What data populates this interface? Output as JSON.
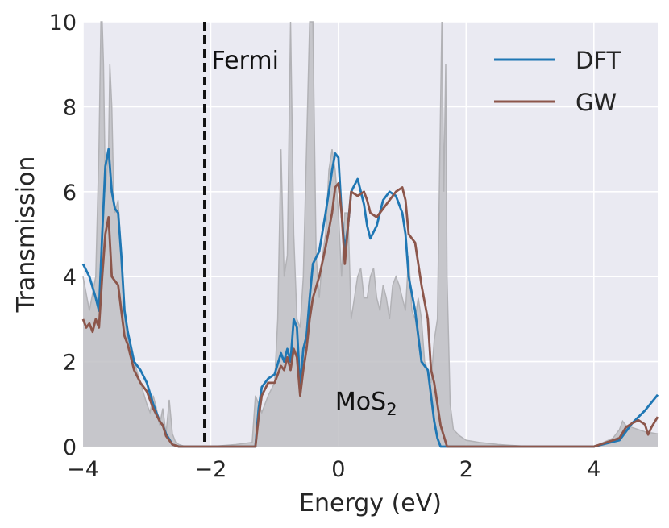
{
  "chart_data": {
    "type": "line",
    "title": "",
    "xlabel": "Energy (eV)",
    "ylabel": "Transmission",
    "xlim": [
      -4,
      5
    ],
    "ylim": [
      0,
      10
    ],
    "xticks": [
      -4,
      -2,
      0,
      2,
      4
    ],
    "xtick_labels": [
      "−4",
      "−2",
      "0",
      "2",
      "4"
    ],
    "yticks": [
      0,
      2,
      4,
      6,
      8,
      10
    ],
    "ytick_labels": [
      "0",
      "2",
      "4",
      "6",
      "8",
      "10"
    ],
    "grid": true,
    "legend_position": "top-right",
    "background_color": "#eaeaf2",
    "series": [
      {
        "name": "DFT",
        "color": "#1f77b4",
        "x": [
          -4.0,
          -3.9,
          -3.8,
          -3.75,
          -3.7,
          -3.65,
          -3.6,
          -3.55,
          -3.5,
          -3.45,
          -3.4,
          -3.35,
          -3.3,
          -3.2,
          -3.1,
          -3.0,
          -2.9,
          -2.8,
          -2.75,
          -2.7,
          -2.6,
          -2.5,
          -2.4,
          -2.2,
          -2.0,
          -1.6,
          -1.3,
          -1.25,
          -1.2,
          -1.1,
          -1.0,
          -0.9,
          -0.85,
          -0.8,
          -0.75,
          -0.7,
          -0.65,
          -0.6,
          -0.55,
          -0.5,
          -0.45,
          -0.4,
          -0.3,
          -0.2,
          -0.1,
          -0.05,
          0.0,
          0.05,
          0.1,
          0.15,
          0.2,
          0.3,
          0.4,
          0.45,
          0.5,
          0.6,
          0.7,
          0.8,
          0.9,
          1.0,
          1.05,
          1.1,
          1.2,
          1.3,
          1.4,
          1.45,
          1.5,
          1.55,
          1.6,
          1.7,
          1.8,
          2.0,
          3.0,
          4.0,
          4.4,
          4.5,
          4.6,
          4.8,
          5.0
        ],
        "y": [
          4.3,
          4.0,
          3.5,
          3.2,
          5.0,
          6.6,
          7.0,
          6.0,
          5.6,
          5.5,
          4.5,
          3.2,
          2.7,
          2.0,
          1.8,
          1.5,
          1.0,
          0.6,
          0.5,
          0.3,
          0.05,
          0.0,
          0.0,
          0.0,
          0.0,
          0.0,
          0.0,
          0.9,
          1.4,
          1.6,
          1.7,
          2.2,
          2.0,
          2.3,
          2.0,
          3.0,
          2.8,
          1.4,
          2.3,
          2.6,
          3.5,
          4.3,
          4.6,
          5.5,
          6.5,
          6.9,
          6.8,
          5.5,
          4.6,
          5.2,
          6.0,
          6.3,
          5.7,
          5.2,
          4.9,
          5.2,
          5.8,
          6.0,
          5.9,
          5.5,
          5.0,
          4.0,
          3.2,
          2.0,
          1.8,
          1.2,
          0.6,
          0.2,
          0.0,
          0.0,
          0.0,
          0.0,
          0.0,
          0.0,
          0.15,
          0.35,
          0.55,
          0.85,
          1.22
        ]
      },
      {
        "name": "GW",
        "color": "#8c564b",
        "x": [
          -4.0,
          -3.95,
          -3.9,
          -3.85,
          -3.8,
          -3.75,
          -3.7,
          -3.65,
          -3.6,
          -3.55,
          -3.5,
          -3.45,
          -3.4,
          -3.35,
          -3.3,
          -3.2,
          -3.1,
          -3.0,
          -2.9,
          -2.8,
          -2.75,
          -2.7,
          -2.6,
          -2.5,
          -2.4,
          -2.2,
          -2.0,
          -1.6,
          -1.3,
          -1.25,
          -1.2,
          -1.1,
          -1.0,
          -0.9,
          -0.85,
          -0.8,
          -0.75,
          -0.7,
          -0.65,
          -0.6,
          -0.55,
          -0.5,
          -0.45,
          -0.4,
          -0.3,
          -0.2,
          -0.1,
          -0.05,
          0.0,
          0.05,
          0.1,
          0.15,
          0.2,
          0.3,
          0.4,
          0.45,
          0.5,
          0.6,
          0.7,
          0.8,
          0.9,
          1.0,
          1.05,
          1.1,
          1.2,
          1.3,
          1.4,
          1.45,
          1.5,
          1.55,
          1.6,
          1.7,
          1.8,
          2.0,
          3.0,
          4.0,
          4.4,
          4.5,
          4.6,
          4.7,
          4.8,
          4.85,
          4.9,
          5.0
        ],
        "y": [
          3.0,
          2.8,
          2.9,
          2.7,
          3.0,
          2.8,
          4.0,
          5.0,
          5.4,
          4.0,
          3.9,
          3.8,
          3.2,
          2.6,
          2.4,
          1.8,
          1.5,
          1.3,
          0.9,
          0.6,
          0.5,
          0.25,
          0.05,
          0.0,
          0.0,
          0.0,
          0.0,
          0.0,
          0.0,
          0.7,
          1.2,
          1.5,
          1.5,
          1.9,
          1.8,
          2.1,
          1.8,
          2.3,
          2.1,
          1.2,
          1.8,
          2.3,
          3.0,
          3.5,
          4.0,
          4.7,
          5.5,
          6.1,
          6.2,
          5.5,
          4.3,
          5.2,
          6.0,
          5.9,
          6.0,
          5.8,
          5.5,
          5.4,
          5.6,
          5.8,
          6.0,
          6.1,
          5.8,
          5.0,
          4.8,
          3.8,
          3.0,
          1.8,
          1.5,
          1.0,
          0.5,
          0.0,
          0.0,
          0.0,
          0.0,
          0.0,
          0.2,
          0.45,
          0.55,
          0.62,
          0.52,
          0.28,
          0.45,
          0.7
        ]
      }
    ],
    "background_dos": {
      "color": "#c0c0c4",
      "x": [
        -4.0,
        -3.9,
        -3.8,
        -3.75,
        -3.72,
        -3.7,
        -3.68,
        -3.65,
        -3.6,
        -3.58,
        -3.55,
        -3.52,
        -3.5,
        -3.45,
        -3.4,
        -3.35,
        -3.3,
        -3.2,
        -3.1,
        -3.0,
        -2.95,
        -2.9,
        -2.85,
        -2.8,
        -2.75,
        -2.7,
        -2.65,
        -2.6,
        -2.55,
        -2.5,
        -2.4,
        -2.2,
        -2.0,
        -1.6,
        -1.35,
        -1.3,
        -1.25,
        -1.2,
        -1.1,
        -1.0,
        -0.95,
        -0.9,
        -0.85,
        -0.8,
        -0.75,
        -0.7,
        -0.65,
        -0.6,
        -0.55,
        -0.5,
        -0.45,
        -0.4,
        -0.35,
        -0.3,
        -0.25,
        -0.2,
        -0.15,
        -0.1,
        -0.05,
        0.0,
        0.05,
        0.1,
        0.15,
        0.2,
        0.25,
        0.3,
        0.35,
        0.4,
        0.45,
        0.5,
        0.55,
        0.6,
        0.65,
        0.7,
        0.75,
        0.8,
        0.85,
        0.9,
        0.95,
        1.0,
        1.05,
        1.1,
        1.15,
        1.2,
        1.25,
        1.3,
        1.35,
        1.4,
        1.45,
        1.5,
        1.55,
        1.6,
        1.62,
        1.65,
        1.68,
        1.7,
        1.75,
        1.8,
        1.9,
        2.0,
        2.2,
        2.5,
        3.0,
        3.5,
        4.0,
        4.3,
        4.4,
        4.45,
        4.5,
        4.6,
        4.8,
        5.0
      ],
      "y": [
        4.0,
        3.2,
        4.0,
        7.0,
        10.0,
        10.0,
        9.0,
        6.0,
        7.0,
        9.0,
        8.0,
        6.0,
        5.5,
        5.8,
        4.5,
        3.0,
        2.5,
        2.0,
        1.5,
        1.0,
        0.8,
        1.2,
        0.9,
        0.5,
        0.9,
        0.3,
        1.1,
        0.3,
        0.1,
        0.05,
        0.0,
        0.0,
        0.0,
        0.05,
        0.1,
        1.2,
        1.0,
        0.8,
        1.2,
        1.5,
        3.0,
        7.0,
        4.0,
        4.5,
        10.0,
        5.0,
        3.0,
        2.8,
        4.0,
        7.0,
        10.0,
        10.0,
        4.5,
        3.5,
        4.5,
        5.0,
        6.5,
        7.0,
        6.5,
        5.5,
        4.0,
        5.5,
        5.5,
        3.0,
        3.5,
        4.0,
        4.2,
        3.5,
        3.5,
        4.0,
        4.2,
        3.5,
        3.2,
        3.8,
        3.5,
        3.0,
        3.8,
        4.0,
        3.8,
        3.5,
        3.2,
        4.5,
        3.2,
        3.0,
        3.5,
        3.0,
        2.0,
        1.8,
        1.5,
        2.5,
        3.0,
        8.0,
        10.0,
        6.0,
        9.0,
        4.0,
        1.0,
        0.4,
        0.25,
        0.15,
        0.1,
        0.05,
        0.0,
        0.0,
        0.0,
        0.2,
        0.4,
        0.6,
        0.5,
        0.45,
        0.35,
        0.3
      ]
    },
    "annotations": {
      "fermi_label": "Fermi",
      "fermi_x": -2.1,
      "material_main": "MoS",
      "material_sub": "2",
      "material_x": -0.05,
      "material_y": 1.1
    }
  }
}
